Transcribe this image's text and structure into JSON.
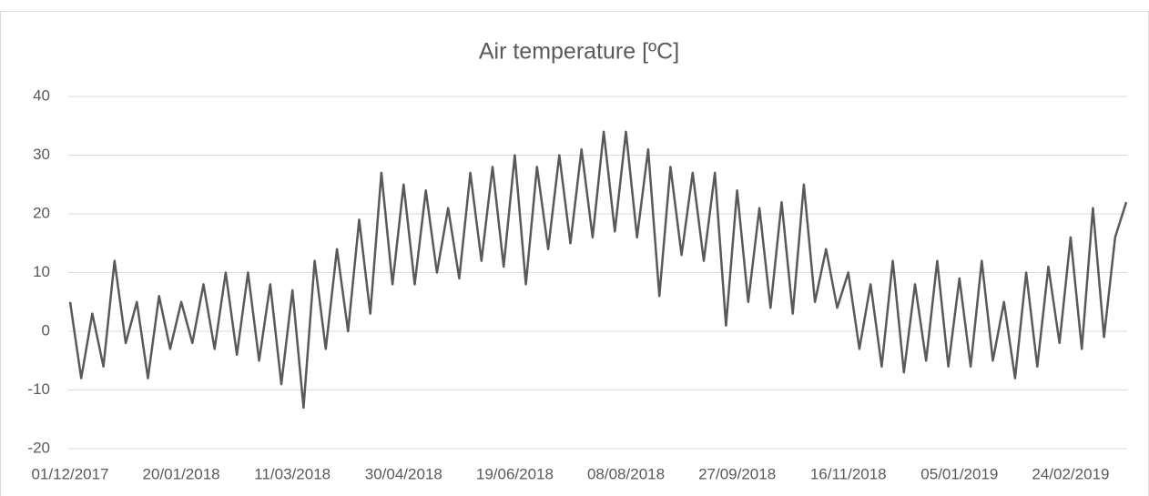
{
  "chart_data": {
    "type": "line",
    "title": "Air temperature [ºC]",
    "x": [
      "01/12/2017",
      "06/12/2017",
      "11/12/2017",
      "16/12/2017",
      "21/12/2017",
      "26/12/2017",
      "31/12/2017",
      "05/01/2018",
      "10/01/2018",
      "15/01/2018",
      "20/01/2018",
      "25/01/2018",
      "30/01/2018",
      "04/02/2018",
      "09/02/2018",
      "14/02/2018",
      "19/02/2018",
      "24/02/2018",
      "01/03/2018",
      "06/03/2018",
      "11/03/2018",
      "16/03/2018",
      "21/03/2018",
      "26/03/2018",
      "31/03/2018",
      "05/04/2018",
      "10/04/2018",
      "15/04/2018",
      "20/04/2018",
      "25/04/2018",
      "30/04/2018",
      "05/05/2018",
      "10/05/2018",
      "15/05/2018",
      "20/05/2018",
      "25/05/2018",
      "30/05/2018",
      "04/06/2018",
      "09/06/2018",
      "14/06/2018",
      "19/06/2018",
      "24/06/2018",
      "29/06/2018",
      "04/07/2018",
      "09/07/2018",
      "14/07/2018",
      "19/07/2018",
      "24/07/2018",
      "29/07/2018",
      "03/08/2018",
      "08/08/2018",
      "13/08/2018",
      "18/08/2018",
      "23/08/2018",
      "28/08/2018",
      "02/09/2018",
      "07/09/2018",
      "12/09/2018",
      "17/09/2018",
      "22/09/2018",
      "27/09/2018",
      "02/10/2018",
      "07/10/2018",
      "12/10/2018",
      "17/10/2018",
      "22/10/2018",
      "27/10/2018",
      "01/11/2018",
      "06/11/2018",
      "11/11/2018",
      "16/11/2018",
      "21/11/2018",
      "26/11/2018",
      "01/12/2018",
      "06/12/2018",
      "11/12/2018",
      "16/12/2018",
      "21/12/2018",
      "26/12/2018",
      "31/12/2018",
      "05/01/2019",
      "10/01/2019",
      "15/01/2019",
      "20/01/2019",
      "25/01/2019",
      "30/01/2019",
      "04/02/2019",
      "09/02/2019",
      "14/02/2019",
      "19/02/2019",
      "24/02/2019",
      "01/03/2019",
      "06/03/2019",
      "11/03/2019",
      "16/03/2019",
      "21/03/2019"
    ],
    "series": [
      {
        "color": "#595959",
        "values": [
          5,
          -8,
          3,
          -6,
          12,
          -2,
          5,
          -8,
          6,
          -3,
          5,
          -2,
          8,
          -3,
          10,
          -4,
          10,
          -5,
          8,
          -9,
          7,
          -13,
          12,
          -3,
          14,
          0,
          19,
          3,
          27,
          8,
          25,
          8,
          24,
          10,
          21,
          9,
          27,
          12,
          28,
          11,
          30,
          8,
          28,
          14,
          30,
          15,
          31,
          16,
          34,
          17,
          34,
          16,
          31,
          6,
          28,
          13,
          27,
          12,
          27,
          1,
          24,
          5,
          21,
          4,
          22,
          3,
          25,
          5,
          14,
          4,
          10,
          -3,
          8,
          -6,
          12,
          -7,
          8,
          -5,
          12,
          -6,
          9,
          -6,
          12,
          -5,
          5,
          -8,
          10,
          -6,
          11,
          -2,
          16,
          -3,
          21,
          -1,
          16,
          22
        ]
      }
    ],
    "xlim": [
      "01/12/2017",
      "21/03/2019"
    ],
    "xticks": [
      "01/12/2017",
      "20/01/2018",
      "11/03/2018",
      "30/04/2018",
      "19/06/2018",
      "08/08/2018",
      "27/09/2018",
      "16/11/2018",
      "05/01/2019",
      "24/02/2019"
    ],
    "ylim": [
      -20,
      40
    ],
    "yticks": [
      -20,
      -10,
      0,
      10,
      20,
      30,
      40
    ],
    "grid": true
  }
}
